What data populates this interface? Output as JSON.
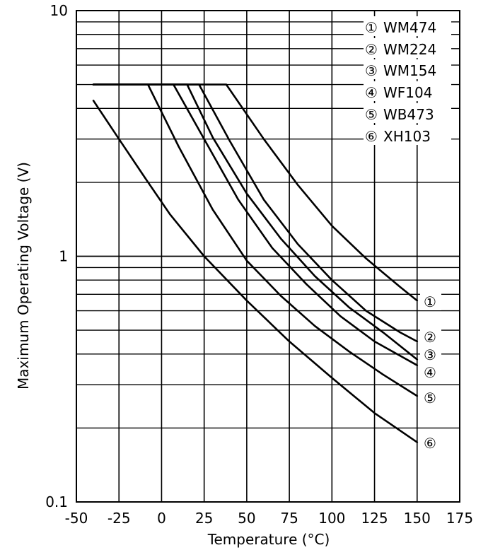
{
  "chart_data": {
    "type": "line",
    "title": "",
    "xlabel": "Temperature (°C)",
    "ylabel": "Maximum Operating Voltage (V)",
    "xlim": [
      -50,
      175
    ],
    "ylim": [
      0.1,
      10
    ],
    "yscale": "log",
    "grid": true,
    "x_ticks": [
      -50,
      -25,
      0,
      25,
      50,
      75,
      100,
      125,
      150,
      175
    ],
    "y_tick_labels": [
      {
        "value": 0.1,
        "label": "0.1"
      },
      {
        "value": 1,
        "label": "1"
      },
      {
        "value": 10,
        "label": "10"
      }
    ],
    "legend_position": "top-right",
    "series": [
      {
        "name": "WM474",
        "marker": "①",
        "x": [
          38,
          60,
          80,
          100,
          120,
          140,
          150
        ],
        "y": [
          5,
          3.0,
          1.95,
          1.33,
          0.98,
          0.75,
          0.66
        ]
      },
      {
        "name": "WM224",
        "marker": "②",
        "x": [
          22,
          40,
          60,
          80,
          100,
          120,
          140,
          150
        ],
        "y": [
          5,
          2.95,
          1.7,
          1.12,
          0.8,
          0.6,
          0.49,
          0.45
        ]
      },
      {
        "name": "WM154",
        "marker": "③",
        "x": [
          15,
          30,
          50,
          70,
          90,
          110,
          130,
          150
        ],
        "y": [
          5,
          3.05,
          1.8,
          1.18,
          0.83,
          0.62,
          0.49,
          0.38
        ]
      },
      {
        "name": "WF104",
        "marker": "④",
        "x": [
          7,
          25,
          45,
          65,
          85,
          105,
          125,
          150
        ],
        "y": [
          5,
          3.0,
          1.7,
          1.08,
          0.77,
          0.57,
          0.45,
          0.36
        ]
      },
      {
        "name": "WB473",
        "marker": "⑤",
        "x": [
          -8,
          10,
          30,
          50,
          70,
          90,
          110,
          130,
          150
        ],
        "y": [
          5,
          2.8,
          1.55,
          0.96,
          0.69,
          0.52,
          0.41,
          0.33,
          0.27
        ]
      },
      {
        "name": "XH103",
        "marker": "⑥",
        "x": [
          -40,
          -25,
          -10,
          5,
          25,
          50,
          75,
          100,
          125,
          150
        ],
        "y": [
          4.3,
          3.0,
          2.1,
          1.48,
          1.0,
          0.66,
          0.45,
          0.32,
          0.23,
          0.175
        ]
      }
    ]
  }
}
